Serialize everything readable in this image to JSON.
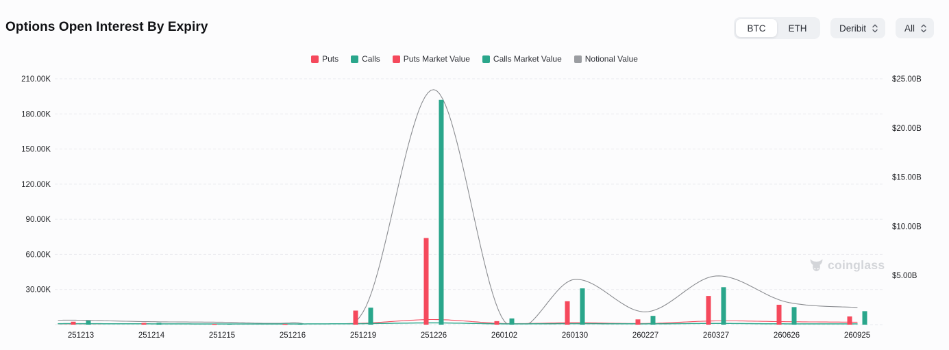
{
  "header": {
    "title": "Options Open Interest By Expiry",
    "asset_toggle": {
      "options": [
        "BTC",
        "ETH"
      ],
      "selected": "BTC"
    },
    "exchange_select": {
      "value": "Deribit"
    },
    "range_select": {
      "value": "All"
    }
  },
  "watermark": {
    "text": "coinglass"
  },
  "colors": {
    "puts_red": "#f5495c",
    "calls_teal": "#2aa68b",
    "notional_gray": "#8a8c90",
    "legend_gray_swatch": "#9b9da1",
    "gridline": "#e9eaee",
    "axis_text": "#1c1d21",
    "control_bg": "#eef0f3",
    "background": "#fcfcfd"
  },
  "chart_data": {
    "type": "bar",
    "subtype": "combo-bar-line",
    "title": "Options Open Interest By Expiry",
    "grid": "dashed-horizontal",
    "legend_position": "top-center",
    "categories": [
      "251213",
      "251214",
      "251215",
      "251216",
      "251219",
      "251226",
      "260102",
      "260130",
      "260227",
      "260327",
      "260626",
      "260925"
    ],
    "left_axis": {
      "unit": "contracts",
      "tick_labels": [
        "30.00K",
        "60.00K",
        "90.00K",
        "120.00K",
        "150.00K",
        "180.00K",
        "210.00K"
      ],
      "tick_values": [
        30,
        60,
        90,
        120,
        150,
        180,
        210
      ],
      "range": [
        0,
        210
      ]
    },
    "right_axis": {
      "unit": "USD",
      "tick_labels": [
        "$5.00B",
        "$10.00B",
        "$15.00B",
        "$20.00B",
        "$25.00B"
      ],
      "tick_values": [
        5,
        10,
        15,
        20,
        25
      ],
      "range": [
        0,
        25
      ]
    },
    "series": [
      {
        "name": "Puts",
        "type": "bar",
        "axis": "left",
        "unit": "K",
        "color": "#f5495c",
        "values": [
          2.5,
          1.5,
          0.6,
          0.6,
          12,
          74,
          3,
          20,
          4.5,
          24.5,
          17,
          7
        ]
      },
      {
        "name": "Calls",
        "type": "bar",
        "axis": "left",
        "unit": "K",
        "color": "#2aa68b",
        "values": [
          3.5,
          1.5,
          0.8,
          0.8,
          14.5,
          192,
          5.3,
          31,
          7.5,
          32,
          15,
          11.5
        ]
      },
      {
        "name": "Puts Market Value",
        "type": "line",
        "axis": "right",
        "unit": "B",
        "color": "#f5495c",
        "values": [
          0.06,
          0.05,
          0.04,
          0.04,
          0.15,
          0.52,
          0.12,
          0.2,
          0.12,
          0.38,
          0.3,
          0.25
        ]
      },
      {
        "name": "Calls Market Value",
        "type": "line",
        "axis": "right",
        "unit": "B",
        "color": "#2aa68b",
        "values": [
          0.1,
          0.08,
          0.07,
          0.07,
          0.1,
          0.18,
          0.08,
          0.1,
          0.08,
          0.12,
          0.08,
          0.08
        ]
      },
      {
        "name": "Notional Value",
        "type": "line",
        "axis": "right",
        "unit": "B",
        "color": "#8a8c90",
        "values": [
          0.45,
          0.3,
          0.25,
          0.2,
          1.3,
          23.9,
          0.35,
          4.6,
          1.3,
          4.95,
          2.3,
          1.75
        ]
      }
    ],
    "legend": [
      "Puts",
      "Calls",
      "Puts Market Value",
      "Calls Market Value",
      "Notional Value"
    ],
    "legend_swatch_colors": [
      "#f5495c",
      "#2aa68b",
      "#f5495c",
      "#2aa68b",
      "#9b9da1"
    ]
  }
}
